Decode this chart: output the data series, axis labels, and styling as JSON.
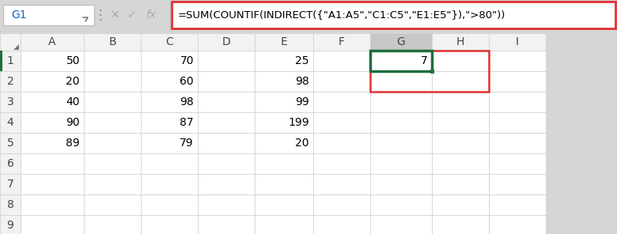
{
  "formula_bar_text": "=SUM(COUNTIF(INDIRECT({\"A1:A5\",\"C1:C5\",\"E1:E5\"}),\">80\"))",
  "cell_ref": "G1",
  "col_headers": [
    "A",
    "B",
    "C",
    "D",
    "E",
    "F",
    "G",
    "H",
    "I"
  ],
  "row_headers": [
    "1",
    "2",
    "3",
    "4",
    "5",
    "6",
    "7",
    "8",
    "9"
  ],
  "data": {
    "A1": "50",
    "A2": "20",
    "A3": "40",
    "A4": "90",
    "A5": "89",
    "C1": "70",
    "C2": "60",
    "C3": "98",
    "C4": "87",
    "C5": "79",
    "E1": "25",
    "E2": "98",
    "E3": "99",
    "E4": "199",
    "E5": "20",
    "G1": "7"
  },
  "bg_color": "#d6d6d6",
  "cell_bg": "#ffffff",
  "header_bg": "#f2f2f2",
  "selected_col_header_bg": "#c8c8c8",
  "formula_bar_bg": "#ffffff",
  "formula_border_color": "#e03030",
  "selected_cell_border": "#e03030",
  "active_cell_border": "#1e6e3e",
  "cell_text_color": "#000000",
  "header_text_color": "#444444",
  "grid_color": "#d0d0d0",
  "ref_text_color": "#1565c0",
  "fig_width": 7.8,
  "fig_height": 2.96,
  "dpi": 100
}
